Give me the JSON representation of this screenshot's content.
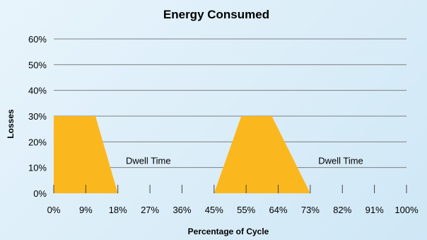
{
  "chart_data": {
    "type": "area",
    "title": "Energy Consumed",
    "xlabel": "Percentage of Cycle",
    "ylabel": "Losses",
    "x_ticks": [
      "0%",
      "9%",
      "18%",
      "27%",
      "36%",
      "45%",
      "55%",
      "64%",
      "73%",
      "82%",
      "91%",
      "100%"
    ],
    "y_ticks": [
      "0%",
      "10%",
      "20%",
      "30%",
      "40%",
      "50%",
      "60%"
    ],
    "ylim": [
      0,
      60
    ],
    "grid": true,
    "series": [
      {
        "color": "#fbb71e",
        "x": [
          0,
          0,
          12,
          18,
          46,
          54,
          63,
          73
        ],
        "y": [
          0,
          30,
          30,
          0,
          0,
          30,
          30,
          0
        ],
        "x_scale_note": "tick index units",
        "points": [
          [
            0,
            0
          ],
          [
            0,
            30
          ],
          [
            1.3,
            30
          ],
          [
            2.0,
            0
          ],
          [
            5.0,
            0
          ],
          [
            5.85,
            30
          ],
          [
            6.8,
            30
          ],
          [
            8.0,
            0
          ]
        ]
      }
    ],
    "annotations": [
      {
        "text": "Dwell Time",
        "x_tick": 2.95,
        "y": 10
      },
      {
        "text": "Dwell Time",
        "x_tick": 8.95,
        "y": 10
      }
    ]
  }
}
